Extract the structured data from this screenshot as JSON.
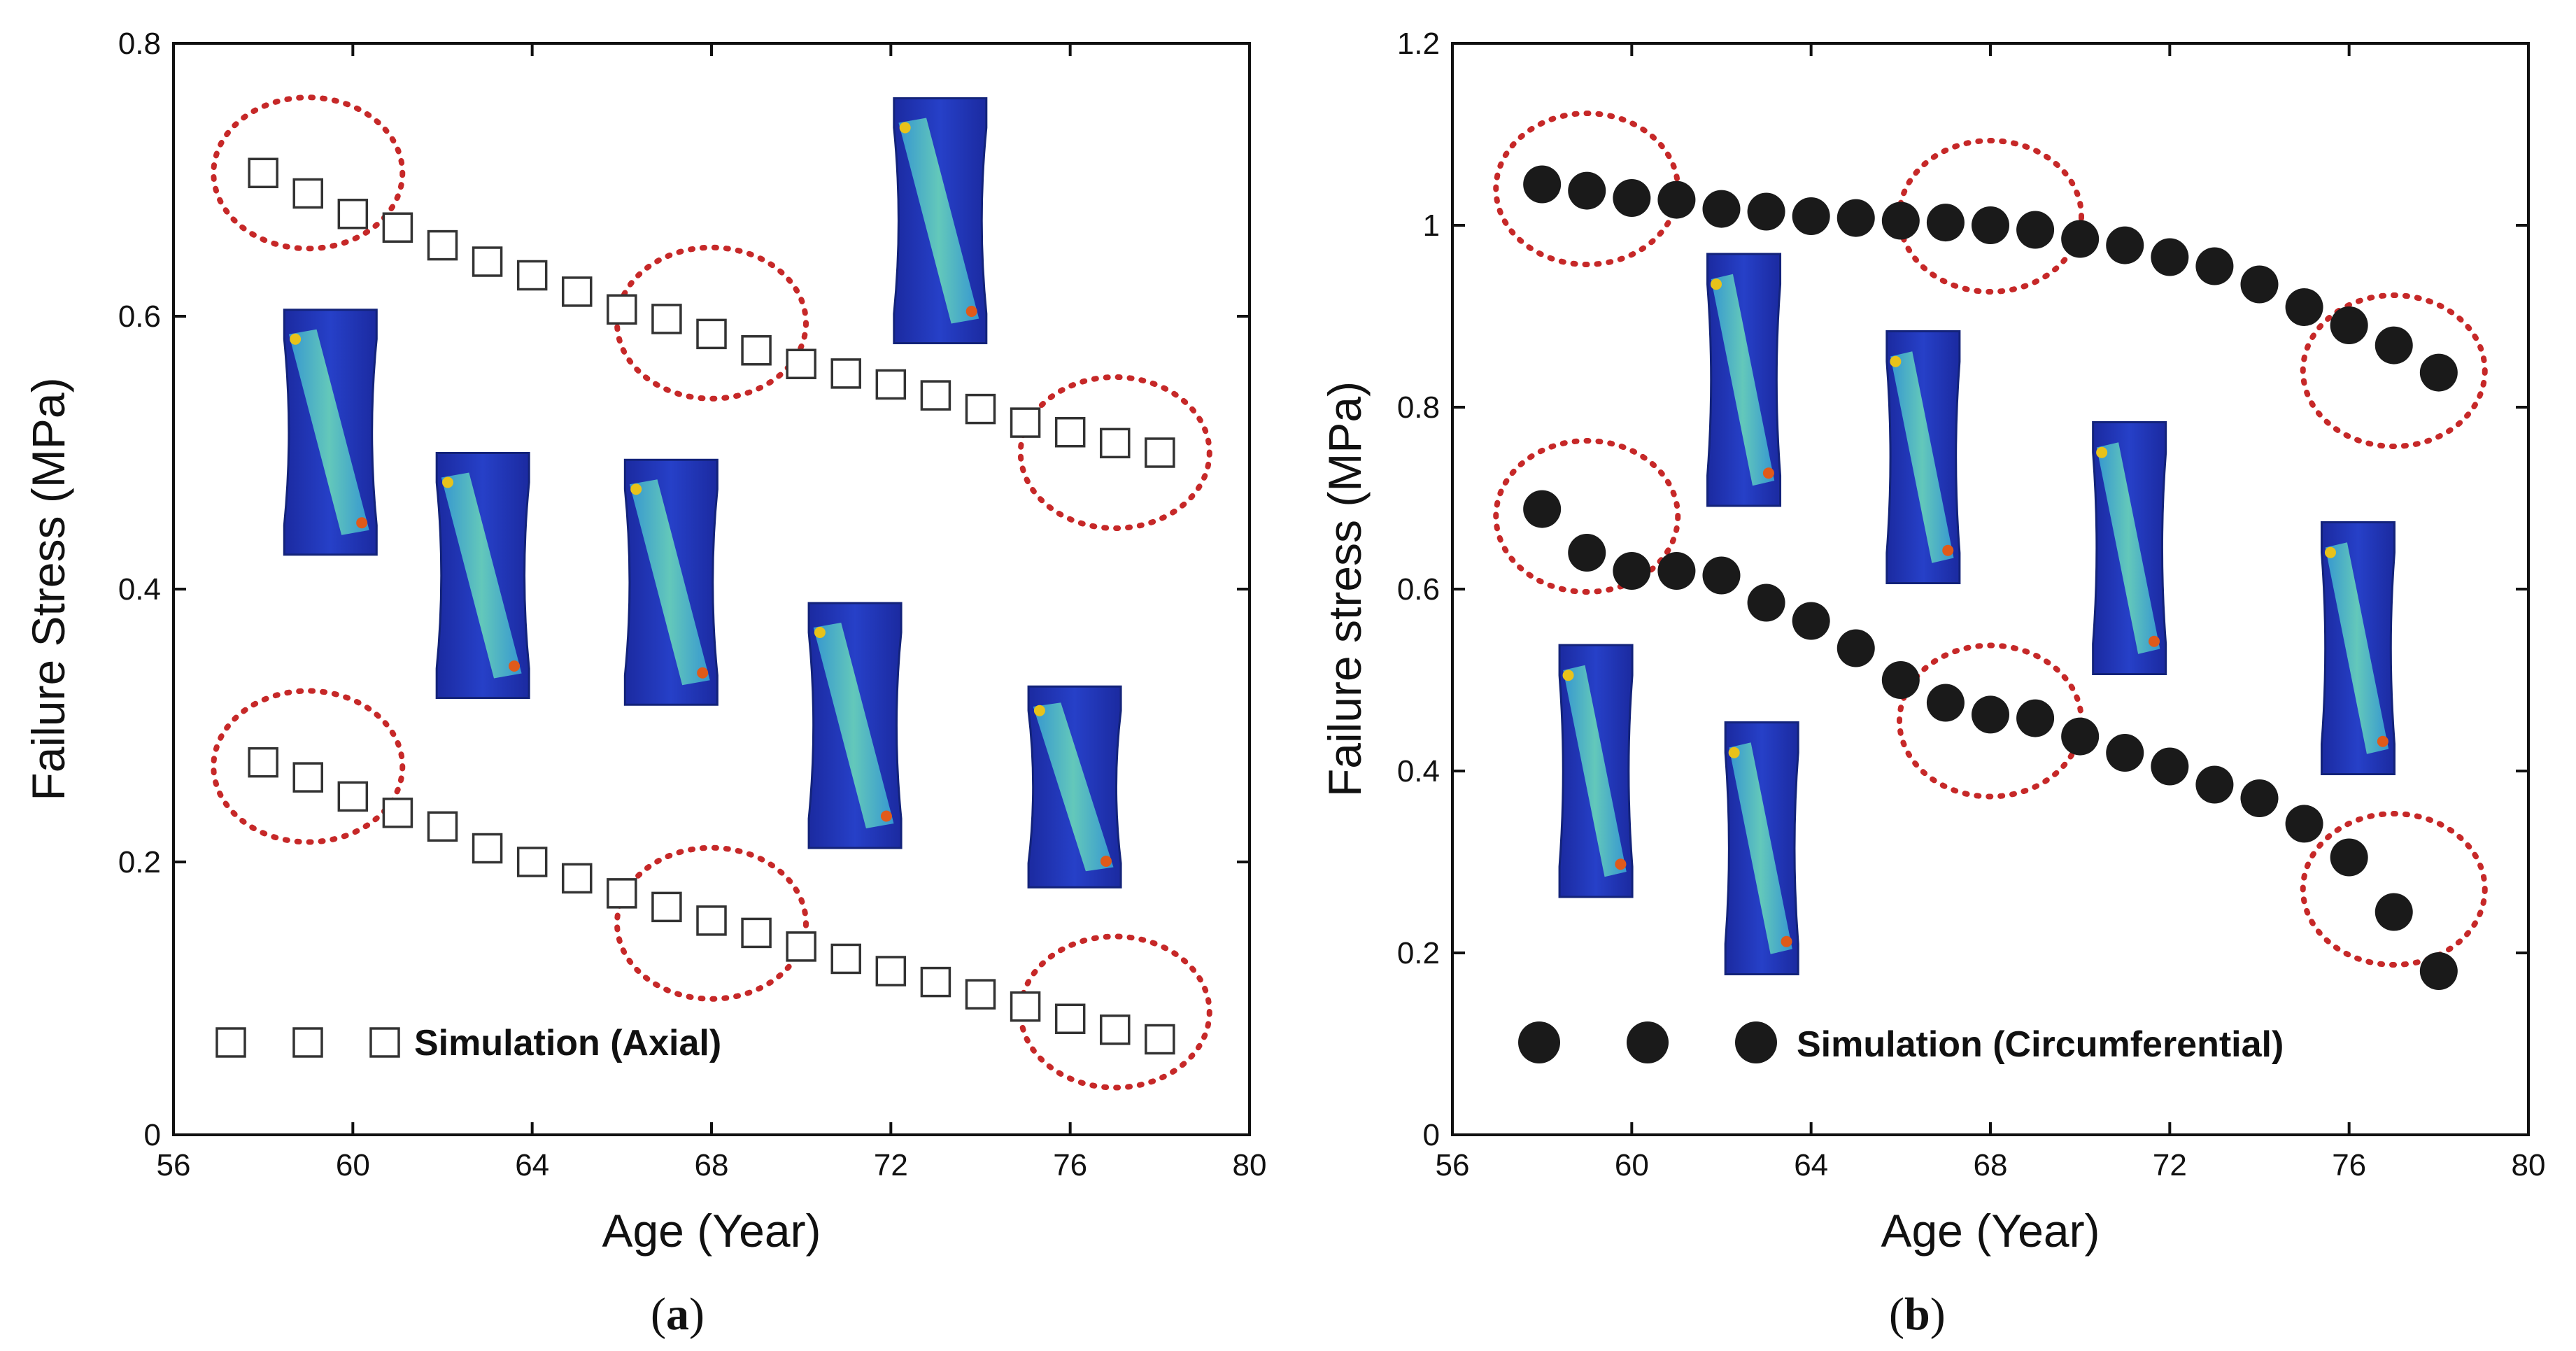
{
  "chart_data": [
    {
      "type": "scatter",
      "panel_label": "a",
      "xlabel": "Age (Year)",
      "ylabel": "Failure Stress (MPa)",
      "xlim": [
        56,
        80
      ],
      "ylim": [
        0,
        0.8
      ],
      "xticks": [
        56,
        60,
        64,
        68,
        72,
        76,
        80
      ],
      "yticks": [
        0,
        0.2,
        0.4,
        0.6,
        0.8
      ],
      "marker": "open-square",
      "legend": "Simulation (Axial)",
      "legend_location": "bottom-left",
      "series": [
        {
          "name": "upper",
          "x": [
            58,
            59,
            60,
            61,
            62,
            63,
            64,
            65,
            66,
            67,
            68,
            69,
            70,
            71,
            72,
            73,
            74,
            75,
            76,
            77,
            78
          ],
          "y": [
            0.705,
            0.69,
            0.675,
            0.665,
            0.652,
            0.64,
            0.63,
            0.618,
            0.605,
            0.598,
            0.587,
            0.575,
            0.565,
            0.558,
            0.55,
            0.542,
            0.532,
            0.522,
            0.515,
            0.507,
            0.5
          ]
        },
        {
          "name": "lower",
          "x": [
            58,
            59,
            60,
            61,
            62,
            63,
            64,
            65,
            66,
            67,
            68,
            69,
            70,
            71,
            72,
            73,
            74,
            75,
            76,
            77,
            78
          ],
          "y": [
            0.273,
            0.262,
            0.248,
            0.236,
            0.226,
            0.21,
            0.2,
            0.188,
            0.177,
            0.167,
            0.157,
            0.148,
            0.138,
            0.129,
            0.12,
            0.112,
            0.103,
            0.094,
            0.085,
            0.077,
            0.07
          ]
        }
      ],
      "highlight_circles": [
        {
          "x": 59,
          "y": 0.705
        },
        {
          "x": 68,
          "y": 0.595
        },
        {
          "x": 77,
          "y": 0.5
        },
        {
          "x": 59,
          "y": 0.27
        },
        {
          "x": 68,
          "y": 0.155
        },
        {
          "x": 77,
          "y": 0.09
        }
      ],
      "specimen_insets": [
        {
          "x": 59.5,
          "y": 0.515
        },
        {
          "x": 62.9,
          "y": 0.41
        },
        {
          "x": 67.1,
          "y": 0.405
        },
        {
          "x": 71.2,
          "y": 0.3
        },
        {
          "x": 73.1,
          "y": 0.67
        },
        {
          "x": 76.1,
          "y": 0.255
        }
      ]
    },
    {
      "type": "scatter",
      "panel_label": "b",
      "xlabel": "Age (Year)",
      "ylabel": "Failure stress (MPa)",
      "xlim": [
        56,
        80
      ],
      "ylim": [
        0,
        1.2
      ],
      "xticks": [
        56,
        60,
        64,
        68,
        72,
        76,
        80
      ],
      "yticks": [
        0,
        0.2,
        0.4,
        0.6,
        0.8,
        1,
        1.2
      ],
      "marker": "filled-circle",
      "legend": "Simulation (Circumferential)",
      "legend_location": "bottom-left",
      "series": [
        {
          "name": "upper",
          "x": [
            58,
            59,
            60,
            61,
            62,
            63,
            64,
            65,
            66,
            67,
            68,
            69,
            70,
            71,
            72,
            73,
            74,
            75,
            76,
            77,
            78
          ],
          "y": [
            1.045,
            1.038,
            1.03,
            1.028,
            1.018,
            1.015,
            1.01,
            1.008,
            1.005,
            1.003,
            1.0,
            0.995,
            0.985,
            0.978,
            0.965,
            0.955,
            0.935,
            0.91,
            0.89,
            0.868,
            0.838
          ]
        },
        {
          "name": "lower",
          "x": [
            58,
            59,
            60,
            61,
            62,
            63,
            64,
            65,
            66,
            67,
            68,
            69,
            70,
            71,
            72,
            73,
            74,
            75,
            76,
            77,
            78
          ],
          "y": [
            0.688,
            0.64,
            0.62,
            0.62,
            0.615,
            0.585,
            0.565,
            0.535,
            0.5,
            0.475,
            0.462,
            0.458,
            0.438,
            0.42,
            0.405,
            0.385,
            0.37,
            0.342,
            0.305,
            0.245,
            0.18
          ]
        }
      ],
      "highlight_circles": [
        {
          "x": 59,
          "y": 1.04
        },
        {
          "x": 68,
          "y": 1.01
        },
        {
          "x": 77,
          "y": 0.84
        },
        {
          "x": 59,
          "y": 0.68
        },
        {
          "x": 68,
          "y": 0.455
        },
        {
          "x": 77,
          "y": 0.27
        }
      ],
      "specimen_insets": [
        {
          "x": 59.2,
          "y": 0.4
        },
        {
          "x": 62.5,
          "y": 0.83
        },
        {
          "x": 66.5,
          "y": 0.745
        },
        {
          "x": 71.1,
          "y": 0.645
        },
        {
          "x": 62.9,
          "y": 0.315
        },
        {
          "x": 76.2,
          "y": 0.535
        }
      ]
    }
  ],
  "captions": {
    "a": "(a)",
    "b": "(b)"
  },
  "colors": {
    "highlight": "#c62828",
    "specimen_blue": "#1f2ea8",
    "specimen_stress": "#2bb3a3",
    "specimen_peak": "#e8c21a"
  }
}
